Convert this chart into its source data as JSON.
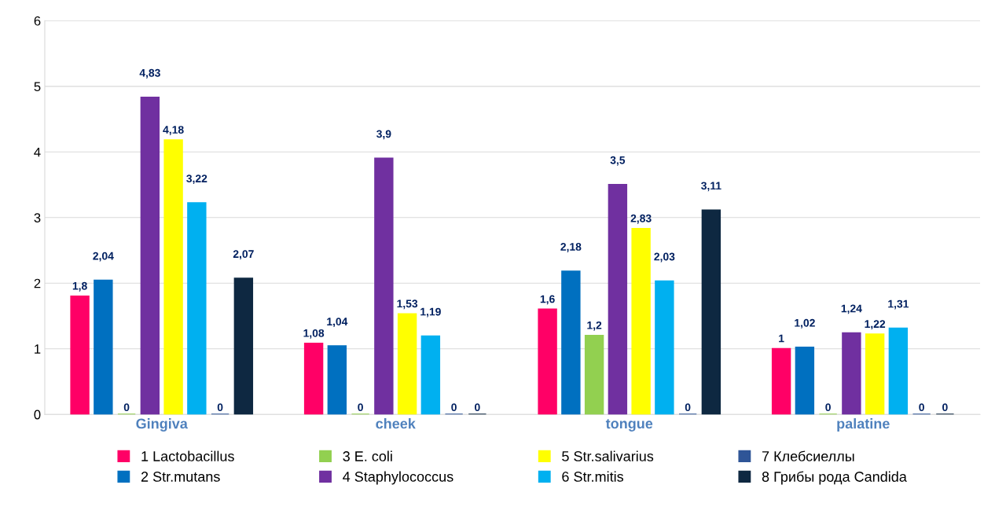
{
  "chart_data": {
    "type": "bar",
    "categories": [
      "Gingiva",
      "cheek",
      "tongue",
      "palatine"
    ],
    "series": [
      {
        "name": "1 Lactobacillus",
        "color": "#ff0066",
        "values": [
          1.8,
          1.08,
          1.6,
          1
        ],
        "value_labels": [
          "1,8",
          "1,08",
          "1,6",
          "1"
        ]
      },
      {
        "name": "2 Str.mutans",
        "color": "#0070c0",
        "values": [
          2.04,
          1.04,
          2.18,
          1.02
        ],
        "value_labels": [
          "2,04",
          "1,04",
          "2,18",
          "1,02"
        ]
      },
      {
        "name": "3 E. coli",
        "color": "#92d050",
        "values": [
          0,
          0,
          1.2,
          0
        ],
        "value_labels": [
          "0",
          "0",
          "1,2",
          "0"
        ]
      },
      {
        "name": "4 Staphylococcus",
        "color": "#7030a0",
        "values": [
          4.83,
          3.9,
          3.5,
          1.24
        ],
        "value_labels": [
          "4,83",
          "3,9",
          "3,5",
          "1,24"
        ]
      },
      {
        "name": "5 Str.salivarius",
        "color": "#ffff00",
        "values": [
          4.18,
          1.53,
          2.83,
          1.22
        ],
        "value_labels": [
          "4,18",
          "1,53",
          "2,83",
          "1,22"
        ]
      },
      {
        "name": "6 Str.mitis",
        "color": "#00b0f0",
        "values": [
          3.22,
          1.19,
          2.03,
          1.31
        ],
        "value_labels": [
          "3,22",
          "1,19",
          "2,03",
          "1,31"
        ]
      },
      {
        "name": "7 Клебсиеллы",
        "color": "#2f5597",
        "values": [
          0,
          0,
          0,
          0
        ],
        "value_labels": [
          "0",
          "0",
          "0",
          "0"
        ]
      },
      {
        "name": "8 Грибы рода Candida",
        "color": "#0e2841",
        "values": [
          2.07,
          0,
          3.11,
          0
        ],
        "value_labels": [
          "2,07",
          "0",
          "3,11",
          "0"
        ]
      }
    ],
    "ylim": [
      0,
      6
    ],
    "yticks": [
      0,
      1,
      2,
      3,
      4,
      5,
      6
    ],
    "grid": "y",
    "legend": "bottom"
  }
}
